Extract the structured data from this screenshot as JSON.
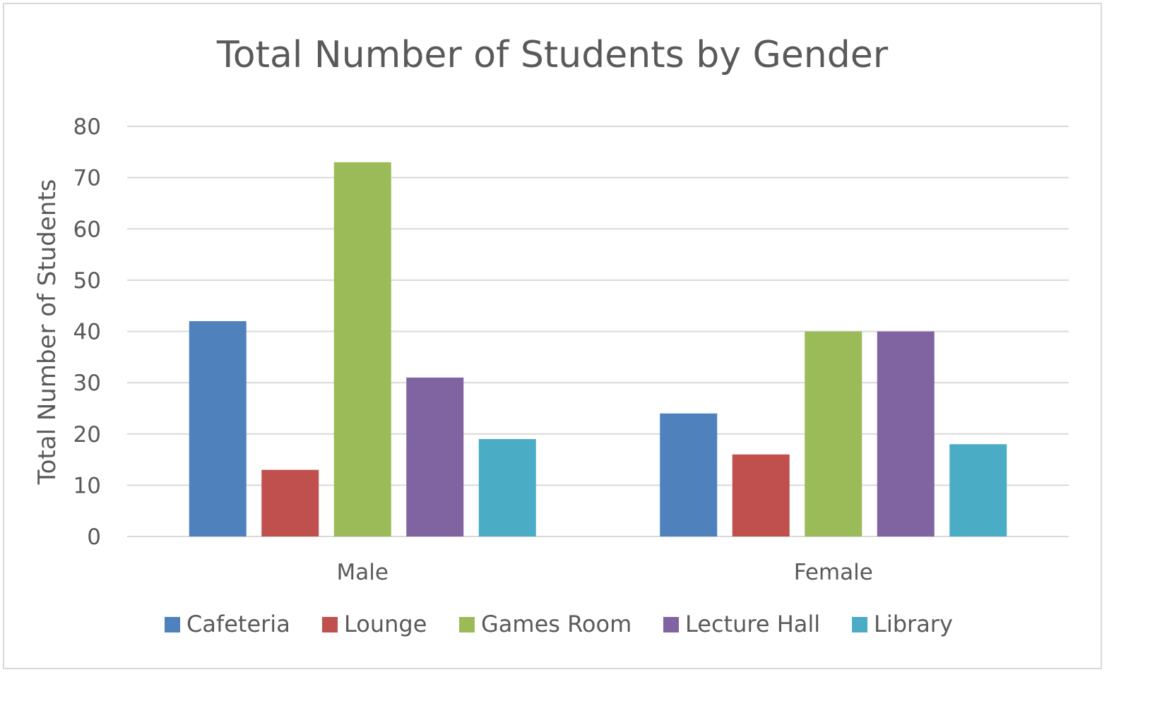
{
  "chart_data": {
    "type": "bar",
    "title": "Total Number of Students by Gender",
    "xlabel": "",
    "ylabel": "Total Number of Students",
    "categories": [
      "Male",
      "Female"
    ],
    "ylim": [
      0,
      80
    ],
    "yticks": [
      0,
      10,
      20,
      30,
      40,
      50,
      60,
      70,
      80
    ],
    "grid": true,
    "legend_position": "bottom",
    "series": [
      {
        "name": "Cafeteria",
        "color": "#4F81BD",
        "values": [
          42,
          24
        ]
      },
      {
        "name": "Lounge",
        "color": "#C0504D",
        "values": [
          13,
          16
        ]
      },
      {
        "name": "Games Room",
        "color": "#9BBB59",
        "values": [
          73,
          40
        ]
      },
      {
        "name": "Lecture Hall",
        "color": "#8064A2",
        "values": [
          31,
          40
        ]
      },
      {
        "name": "Library",
        "color": "#4BACC6",
        "values": [
          19,
          18
        ]
      }
    ]
  }
}
